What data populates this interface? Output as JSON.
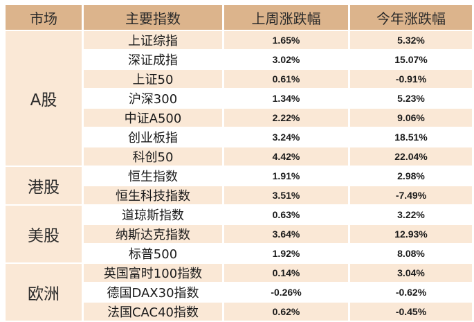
{
  "headers": {
    "market": "市场",
    "index": "主要指数",
    "week": "上周涨跌幅",
    "ytd": "今年涨跌幅"
  },
  "groups": [
    {
      "market": "A股",
      "rows": [
        {
          "name": "上证综指",
          "week": "1.65%",
          "ytd": "5.32%"
        },
        {
          "name": "深证成指",
          "week": "3.02%",
          "ytd": "15.07%"
        },
        {
          "name": "上证50",
          "week": "0.61%",
          "ytd": "-0.91%"
        },
        {
          "name": "沪深300",
          "week": "1.34%",
          "ytd": "5.23%"
        },
        {
          "name": "中证A500",
          "week": "2.22%",
          "ytd": "9.06%"
        },
        {
          "name": "创业板指",
          "week": "3.24%",
          "ytd": "18.51%"
        },
        {
          "name": "科创50",
          "week": "4.42%",
          "ytd": "22.04%"
        }
      ]
    },
    {
      "market": "港股",
      "rows": [
        {
          "name": "恒生指数",
          "week": "1.91%",
          "ytd": "2.98%"
        },
        {
          "name": "恒生科技指数",
          "week": "3.51%",
          "ytd": "-7.49%"
        }
      ]
    },
    {
      "market": "美股",
      "rows": [
        {
          "name": "道琼斯指数",
          "week": "0.63%",
          "ytd": "3.22%"
        },
        {
          "name": "纳斯达克指数",
          "week": "3.64%",
          "ytd": "12.93%"
        },
        {
          "name": "标普500",
          "week": "1.92%",
          "ytd": "8.08%"
        }
      ]
    },
    {
      "market": "欧洲",
      "rows": [
        {
          "name": "英国富时100指数",
          "week": "0.14%",
          "ytd": "3.04%"
        },
        {
          "name": "德国DAX30指数",
          "week": "-0.26%",
          "ytd": "-0.62%"
        },
        {
          "name": "法国CAC40指数",
          "week": "0.62%",
          "ytd": "-0.45%"
        }
      ]
    }
  ]
}
